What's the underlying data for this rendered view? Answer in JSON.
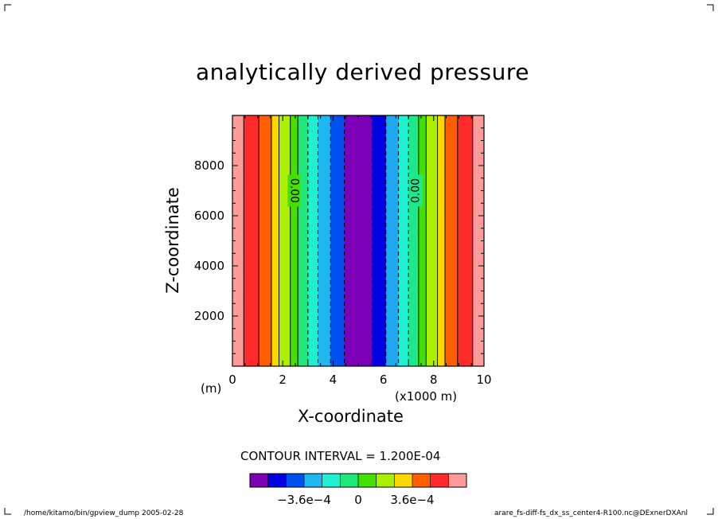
{
  "chart_data": {
    "type": "heatmap",
    "title": "analytically derived pressure",
    "xlabel": "X-coordinate",
    "ylabel": "Z-coordinate",
    "x_unit_note": "(x1000 m)",
    "y_unit_note": "(m)",
    "xlim": [
      0,
      10
    ],
    "ylim": [
      0,
      10000
    ],
    "x_ticks": [
      "0",
      "2",
      "4",
      "6",
      "8",
      "10"
    ],
    "y_ticks": [
      "2000",
      "4000",
      "6000",
      "8000"
    ],
    "y_tick_values": [
      2000,
      4000,
      6000,
      8000
    ],
    "x_tick_values": [
      0,
      2,
      4,
      6,
      8,
      10
    ],
    "contour_interval": "CONTOUR INTERVAL = 1.200E-04",
    "contour_labels": [
      {
        "x": 2.45,
        "y": 7000,
        "text": "0.00",
        "rotation": 90
      },
      {
        "x": 7.3,
        "y": 7000,
        "text": "0.00",
        "rotation": -90
      }
    ],
    "bands": [
      {
        "x0": 0.0,
        "x1": 0.45,
        "color": "#ff9b9b"
      },
      {
        "x0": 0.45,
        "x1": 1.05,
        "color": "#ff2a2a"
      },
      {
        "x0": 1.05,
        "x1": 1.55,
        "color": "#ff5f00"
      },
      {
        "x0": 1.55,
        "x1": 1.85,
        "color": "#ffd700"
      },
      {
        "x0": 1.85,
        "x1": 2.3,
        "color": "#aaf000"
      },
      {
        "x0": 2.3,
        "x1": 2.6,
        "color": "#44e000"
      },
      {
        "x0": 2.6,
        "x1": 3.0,
        "color": "#1ee87c"
      },
      {
        "x0": 3.0,
        "x1": 3.4,
        "color": "#1ef0d0"
      },
      {
        "x0": 3.4,
        "x1": 3.9,
        "color": "#1eb8f0"
      },
      {
        "x0": 3.9,
        "x1": 4.45,
        "color": "#0050f0"
      },
      {
        "x0": 4.45,
        "x1": 5.55,
        "color": "#7b00b8"
      },
      {
        "x0": 5.55,
        "x1": 6.1,
        "color": "#0000e0"
      },
      {
        "x0": 6.1,
        "x1": 6.6,
        "color": "#1ea8f0"
      },
      {
        "x0": 6.6,
        "x1": 7.0,
        "color": "#1ef0d0"
      },
      {
        "x0": 7.0,
        "x1": 7.4,
        "color": "#1ee88c"
      },
      {
        "x0": 7.4,
        "x1": 7.7,
        "color": "#44e000"
      },
      {
        "x0": 7.7,
        "x1": 8.15,
        "color": "#aaf000"
      },
      {
        "x0": 8.15,
        "x1": 8.45,
        "color": "#ffd700"
      },
      {
        "x0": 8.45,
        "x1": 8.95,
        "color": "#ff5f00"
      },
      {
        "x0": 8.95,
        "x1": 9.55,
        "color": "#ff2a2a"
      },
      {
        "x0": 9.55,
        "x1": 10.0,
        "color": "#ff9b9b"
      }
    ],
    "contours_solid": [
      0.45,
      1.05,
      1.55,
      1.85,
      2.3,
      2.6,
      7.4,
      7.7,
      8.15,
      8.45,
      8.95,
      9.55
    ],
    "contours_dashed": [
      3.0,
      3.4,
      3.9,
      4.45,
      5.55,
      6.1,
      6.6,
      7.0
    ],
    "colorbar": {
      "colors": [
        "#7b00b8",
        "#0000e0",
        "#0050f0",
        "#1eb8f0",
        "#1ef0d0",
        "#1ee87c",
        "#44e000",
        "#aaf000",
        "#ffd700",
        "#ff5f00",
        "#ff2a2a",
        "#ff9b9b"
      ],
      "tick_labels": [
        {
          "index": 3,
          "text": "−3.6e−4"
        },
        {
          "index": 6,
          "text": "0"
        },
        {
          "index": 9,
          "text": "3.6e−4"
        }
      ]
    }
  },
  "footer": {
    "left": "/home/kitamo/bin/gpview_dump  2005-02-28",
    "right": "arare_fs-diff-fs_dx_ss_center4-R100.nc@DExnerDXAnl"
  }
}
